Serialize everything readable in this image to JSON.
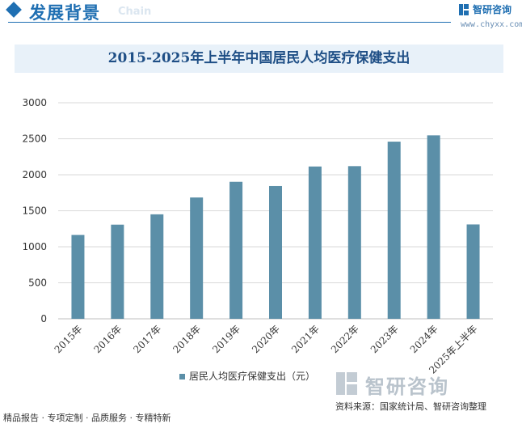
{
  "header": {
    "section_title": "发展背景",
    "section_subtitle": "Chain",
    "brand_name": "智研咨询",
    "brand_url": "www.chyxx.com"
  },
  "chart_data": {
    "type": "bar",
    "title": "2015-2025年上半年中国居民人均医疗保健支出",
    "categories": [
      "2015年",
      "2016年",
      "2017年",
      "2018年",
      "2019年",
      "2020年",
      "2021年",
      "2022年",
      "2023年",
      "2024年",
      "2025年上半年"
    ],
    "series": [
      {
        "name": "居民人均医疗保健支出（元）",
        "values": [
          1165,
          1307,
          1451,
          1685,
          1902,
          1843,
          2115,
          2120,
          2460,
          2547,
          1310
        ],
        "color": "#5b8fa8"
      }
    ],
    "y_ticks": [
      "0",
      "500",
      "1000",
      "1500",
      "2000",
      "2500",
      "3000"
    ],
    "ylim": [
      0,
      3000
    ],
    "grid": true,
    "legend_position": "bottom"
  },
  "footer": {
    "left": "精品报告 · 专项定制 · 品质服务 · 专精特新",
    "source": "资料来源：国家统计局、智研咨询整理"
  },
  "watermark": {
    "text": "智研咨询"
  }
}
